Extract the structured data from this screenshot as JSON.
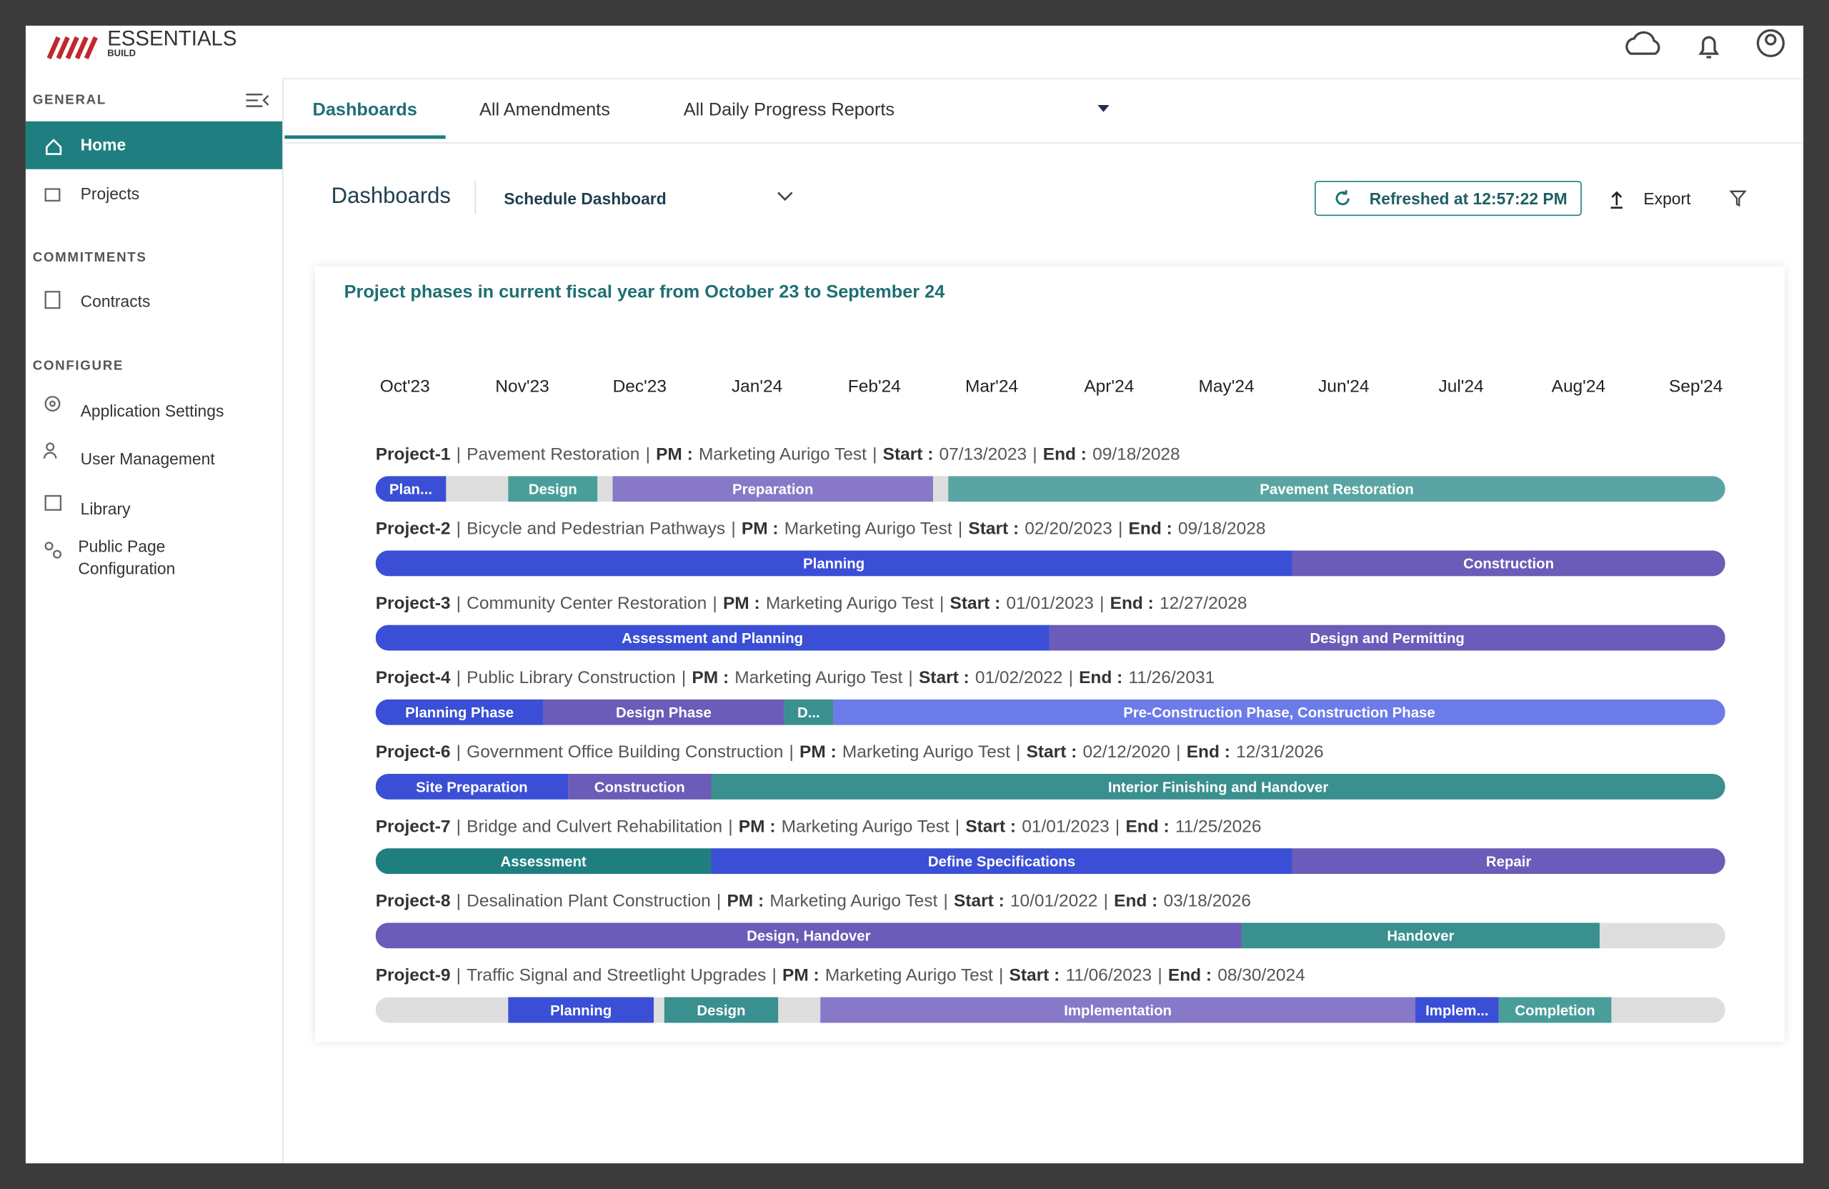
{
  "header": {
    "logo": "ESSENTIALS",
    "logo_sub": "BUILD"
  },
  "sidebar": {
    "sections": [
      {
        "title": "GENERAL",
        "items": [
          "Home",
          "Projects"
        ]
      },
      {
        "title": "COMMITMENTS",
        "items": [
          "Contracts"
        ]
      },
      {
        "title": "CONFIGURE",
        "items": [
          "Application Settings",
          "User Management",
          "Library",
          "Public Page Configuration"
        ]
      }
    ]
  },
  "tabs": [
    "Dashboards",
    "All Amendments",
    "All Daily Progress Reports"
  ],
  "toolbar": {
    "title": "Dashboards",
    "dashboard_select": "Schedule Dashboard",
    "refreshed": "Refreshed at 12:57:22 PM",
    "export": "Export"
  },
  "chart_data": {
    "type": "gantt",
    "title": "Project phases in current fiscal year from October 23 to September 24",
    "categories": [
      "Oct'23",
      "Nov'23",
      "Dec'23",
      "Jan'24",
      "Feb'24",
      "Mar'24",
      "Apr'24",
      "May'24",
      "Jun'24",
      "Jul'24",
      "Aug'24",
      "Sep'24"
    ],
    "xlim": [
      -0.25,
      11.25
    ],
    "field_labels": {
      "separator": "|",
      "pm": "PM :",
      "start": "Start :",
      "end": "End :"
    },
    "projects": [
      {
        "id": "Project-1",
        "name": "Pavement Restoration",
        "pm": "Marketing Aurigo Test",
        "start": "07/13/2023",
        "end": "09/18/2028",
        "phases": [
          {
            "name": "Plan...",
            "start": -0.25,
            "end": 0.35,
            "color": "#3a4fd6"
          },
          {
            "name": "Design",
            "start": 0.88,
            "end": 1.64,
            "color": "#4a9e9a"
          },
          {
            "name": "Preparation",
            "start": 1.77,
            "end": 4.5,
            "color": "#8878c8"
          },
          {
            "name": "Pavement Restoration",
            "start": 4.63,
            "end": 11.25,
            "color": "#5aa5a3"
          }
        ]
      },
      {
        "id": "Project-2",
        "name": "Bicycle and Pedestrian Pathways",
        "pm": "Marketing Aurigo Test",
        "start": "02/20/2023",
        "end": "09/18/2028",
        "phases": [
          {
            "name": "Planning",
            "start": -0.25,
            "end": 7.56,
            "color": "#3a4fd6"
          },
          {
            "name": "Construction",
            "start": 7.56,
            "end": 11.25,
            "color": "#6a5cb8"
          }
        ]
      },
      {
        "id": "Project-3",
        "name": "Community Center Restoration",
        "pm": "Marketing Aurigo Test",
        "start": "01/01/2023",
        "end": "12/27/2028",
        "phases": [
          {
            "name": "Assessment and Planning",
            "start": -0.25,
            "end": 5.49,
            "color": "#3a4fd6"
          },
          {
            "name": "Design and Permitting",
            "start": 5.49,
            "end": 11.25,
            "color": "#6a5cb8"
          }
        ]
      },
      {
        "id": "Project-4",
        "name": "Public Library Construction",
        "pm": "Marketing Aurigo Test",
        "start": "01/02/2022",
        "end": "11/26/2031",
        "phases": [
          {
            "name": "Planning Phase",
            "start": -0.25,
            "end": 1.18,
            "color": "#3a4fd6"
          },
          {
            "name": "Design Phase",
            "start": 1.18,
            "end": 3.23,
            "color": "#6a5cb8"
          },
          {
            "name": "D...",
            "start": 3.23,
            "end": 3.65,
            "color": "#3a8f8f"
          },
          {
            "name": "Pre-Construction Phase, Construction Phase",
            "start": 3.65,
            "end": 11.25,
            "color": "#6b7be8"
          }
        ]
      },
      {
        "id": "Project-6",
        "name": "Government Office Building Construction",
        "pm": "Marketing Aurigo Test",
        "start": "02/12/2020",
        "end": "12/31/2026",
        "phases": [
          {
            "name": "Site Preparation",
            "start": -0.25,
            "end": 1.39,
            "color": "#3a4fd6"
          },
          {
            "name": "Construction",
            "start": 1.39,
            "end": 2.61,
            "color": "#6a5cb8"
          },
          {
            "name": "Interior Finishing and Handover",
            "start": 2.61,
            "end": 11.25,
            "color": "#3a8f8f"
          }
        ]
      },
      {
        "id": "Project-7",
        "name": "Bridge and Culvert Rehabilitation",
        "pm": "Marketing Aurigo Test",
        "start": "01/01/2023",
        "end": "11/25/2026",
        "phases": [
          {
            "name": "Assessment",
            "start": -0.25,
            "end": 2.61,
            "color": "#1f7f80"
          },
          {
            "name": "Define Specifications",
            "start": 2.61,
            "end": 7.56,
            "color": "#3a4fd6"
          },
          {
            "name": "Repair",
            "start": 7.56,
            "end": 11.25,
            "color": "#6a5cb8"
          }
        ]
      },
      {
        "id": "Project-8",
        "name": "Desalination Plant Construction",
        "pm": "Marketing Aurigo Test",
        "start": "10/01/2022",
        "end": "03/18/2026",
        "phases": [
          {
            "name": "Design, Handover",
            "start": -0.25,
            "end": 7.13,
            "color": "#6a5cb8"
          },
          {
            "name": "Handover",
            "start": 7.13,
            "end": 10.18,
            "color": "#3a8f8f"
          }
        ]
      },
      {
        "id": "Project-9",
        "name": "Traffic Signal and Streetlight Upgrades",
        "pm": "Marketing Aurigo Test",
        "start": "11/06/2023",
        "end": "08/30/2024",
        "phases": [
          {
            "name": "Planning",
            "start": 0.88,
            "end": 2.12,
            "color": "#3a4fd6"
          },
          {
            "name": "Design",
            "start": 2.21,
            "end": 3.18,
            "color": "#3a8f8f"
          },
          {
            "name": "Implementation",
            "start": 3.54,
            "end": 8.61,
            "color": "#8878c8"
          },
          {
            "name": "Implem...",
            "start": 8.61,
            "end": 9.32,
            "color": "#3a4fd6"
          },
          {
            "name": "Completion",
            "start": 9.32,
            "end": 10.28,
            "color": "#4a9e9a"
          }
        ]
      }
    ]
  }
}
